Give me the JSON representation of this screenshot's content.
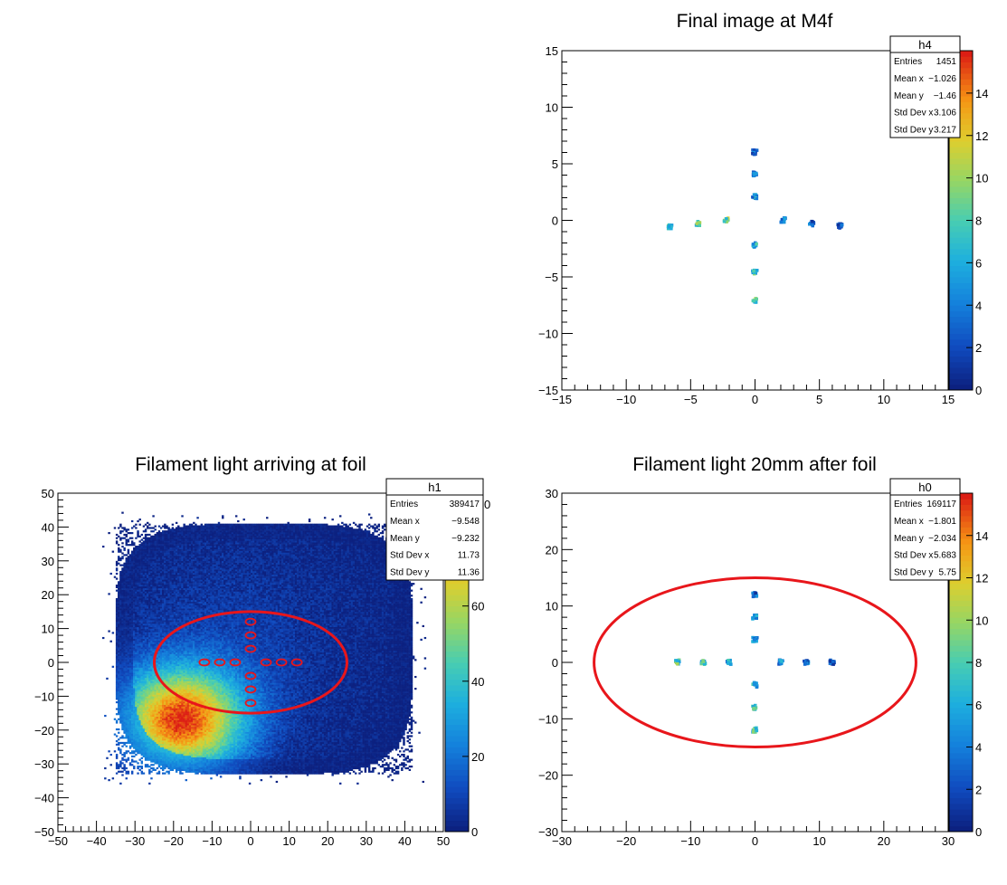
{
  "chart_data": [
    {
      "id": "panel-final-image",
      "type": "heatmap",
      "title": "Final image at M4f",
      "xlim": [
        -15,
        15
      ],
      "ylim": [
        -15,
        15
      ],
      "x_ticks": [
        -15,
        -10,
        -5,
        0,
        5,
        10,
        15
      ],
      "y_ticks": [
        -15,
        -10,
        -5,
        0,
        5,
        10,
        15
      ],
      "colorbar": {
        "min": 0,
        "max": 16,
        "ticks": [
          0,
          2,
          4,
          6,
          8,
          10,
          12,
          14
        ]
      },
      "stats": {
        "name": "h4",
        "rows": [
          {
            "label": "Entries",
            "value": "1451"
          },
          {
            "label": "Mean x",
            "value": "−1.026"
          },
          {
            "label": "Mean y",
            "value": "−1.46"
          },
          {
            "label": "Std Dev x",
            "value": "3.106"
          },
          {
            "label": "Std Dev y",
            "value": "3.217"
          }
        ]
      },
      "spots": [
        {
          "x": 0,
          "y": 6,
          "level": 2
        },
        {
          "x": 0,
          "y": 4.1,
          "level": 3
        },
        {
          "x": 0,
          "y": 2.1,
          "level": 5
        },
        {
          "x": 0,
          "y": -2.2,
          "level": 6
        },
        {
          "x": 0,
          "y": -4.6,
          "level": 7
        },
        {
          "x": 0,
          "y": -7.1,
          "level": 8
        },
        {
          "x": -6.6,
          "y": -0.6,
          "level": 7
        },
        {
          "x": -4.4,
          "y": -0.3,
          "level": 8
        },
        {
          "x": -2.2,
          "y": 0,
          "level": 9
        },
        {
          "x": 2.2,
          "y": 0,
          "level": 4
        },
        {
          "x": 4.4,
          "y": -0.3,
          "level": 3
        },
        {
          "x": 6.6,
          "y": -0.5,
          "level": 2
        }
      ]
    },
    {
      "id": "panel-arriving-foil",
      "type": "heatmap",
      "title": "Filament light arriving at foil",
      "xlim": [
        -50,
        50
      ],
      "ylim": [
        -50,
        50
      ],
      "x_ticks": [
        -50,
        -40,
        -30,
        -20,
        -10,
        0,
        10,
        20,
        30,
        40,
        50
      ],
      "y_ticks": [
        -50,
        -40,
        -30,
        -20,
        -10,
        0,
        10,
        20,
        30,
        40,
        50
      ],
      "colorbar": {
        "min": 0,
        "max": 90,
        "ticks": [
          0,
          20,
          40,
          60
        ]
      },
      "colorbar_hidden_label": "0",
      "stats": {
        "name": "h1",
        "rows": [
          {
            "label": "Entries",
            "value": "389417"
          },
          {
            "label": "Mean x",
            "value": "−9.548"
          },
          {
            "label": "Mean y",
            "value": "−9.232"
          },
          {
            "label": "Std Dev x",
            "value": "11.73"
          },
          {
            "label": "Std Dev y",
            "value": "11.36"
          }
        ]
      },
      "distribution": {
        "peak_x": -18,
        "peak_y": -17,
        "x_range": [
          -35,
          42
        ],
        "y_range": [
          -33,
          41
        ]
      },
      "ellipse": {
        "cx": 0,
        "cy": 0,
        "rx": 25,
        "ry": 15
      },
      "markers": [
        {
          "x": 0,
          "y": 12
        },
        {
          "x": 0,
          "y": 8
        },
        {
          "x": 0,
          "y": 4
        },
        {
          "x": 0,
          "y": -4
        },
        {
          "x": 0,
          "y": -8
        },
        {
          "x": 0,
          "y": -12
        },
        {
          "x": -12,
          "y": 0
        },
        {
          "x": -8,
          "y": 0
        },
        {
          "x": -4,
          "y": 0
        },
        {
          "x": 4,
          "y": 0
        },
        {
          "x": 8,
          "y": 0
        },
        {
          "x": 12,
          "y": 0
        }
      ]
    },
    {
      "id": "panel-after-foil",
      "type": "heatmap",
      "title": "Filament light 20mm after foil",
      "xlim": [
        -30,
        30
      ],
      "ylim": [
        -30,
        30
      ],
      "x_ticks": [
        -30,
        -20,
        -10,
        0,
        10,
        20,
        30
      ],
      "y_ticks": [
        -30,
        -20,
        -10,
        0,
        10,
        20,
        30
      ],
      "colorbar": {
        "min": 0,
        "max": 16,
        "ticks": [
          0,
          2,
          4,
          6,
          8,
          10,
          12,
          14
        ]
      },
      "stats": {
        "name": "h0",
        "rows": [
          {
            "label": "Entries",
            "value": "169117"
          },
          {
            "label": "Mean x",
            "value": "−1.801"
          },
          {
            "label": "Mean y",
            "value": "−2.034"
          },
          {
            "label": "Std Dev x",
            "value": "5.683"
          },
          {
            "label": "Std Dev y",
            "value": "5.75"
          }
        ]
      },
      "ellipse": {
        "cx": 0,
        "cy": 0,
        "rx": 25,
        "ry": 15
      },
      "spots": [
        {
          "x": 0,
          "y": 12,
          "level": 3
        },
        {
          "x": 0,
          "y": 8,
          "level": 4
        },
        {
          "x": 0,
          "y": 4,
          "level": 5
        },
        {
          "x": 0,
          "y": -4,
          "level": 6
        },
        {
          "x": 0,
          "y": -8,
          "level": 7
        },
        {
          "x": 0,
          "y": -12,
          "level": 8
        },
        {
          "x": -12,
          "y": 0,
          "level": 8
        },
        {
          "x": -8,
          "y": 0,
          "level": 7
        },
        {
          "x": -4,
          "y": 0,
          "level": 6
        },
        {
          "x": 4,
          "y": 0,
          "level": 4
        },
        {
          "x": 8,
          "y": 0,
          "level": 3
        },
        {
          "x": 12,
          "y": 0,
          "level": 2
        }
      ]
    }
  ]
}
